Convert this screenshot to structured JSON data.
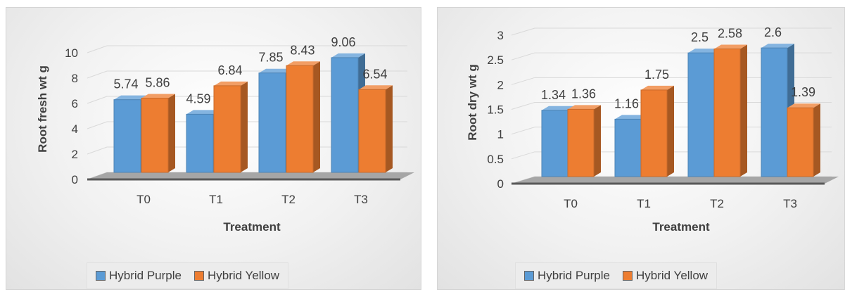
{
  "chart_data": [
    {
      "type": "bar",
      "categories": [
        "T0",
        "T1",
        "T2",
        "T3"
      ],
      "series": [
        {
          "name": "Hybrid Purple",
          "values": [
            5.74,
            4.59,
            7.85,
            9.06
          ],
          "labels": [
            "5.74",
            "4.59",
            "7.85",
            "9.06"
          ]
        },
        {
          "name": "Hybrid Yellow",
          "values": [
            5.86,
            6.84,
            8.43,
            6.54
          ],
          "labels": [
            "5.86",
            "6.84",
            "8.43",
            "6.54"
          ]
        }
      ],
      "yticks": [
        "0",
        "2",
        "4",
        "6",
        "8",
        "10"
      ],
      "xlabel": "Treatment",
      "ylabel": "Root fresh wt g",
      "ylim": [
        0,
        10
      ],
      "legend": "bottom",
      "grid": true,
      "colors": {
        "purple": "#5b9bd5",
        "yellow": "#ed7d31"
      }
    },
    {
      "type": "bar",
      "categories": [
        "T0",
        "T1",
        "T2",
        "T3"
      ],
      "series": [
        {
          "name": "Hybrid Purple",
          "values": [
            1.34,
            1.16,
            2.5,
            2.6
          ],
          "labels": [
            "1.34",
            "1.16",
            "2.5",
            "2.6"
          ]
        },
        {
          "name": "Hybrid Yellow",
          "values": [
            1.36,
            1.75,
            2.58,
            1.39
          ],
          "labels": [
            "1.36",
            "1.75",
            "2.58",
            "1.39"
          ]
        }
      ],
      "yticks": [
        "0",
        "0.5",
        "1",
        "1.5",
        "2",
        "2.5",
        "3"
      ],
      "xlabel": "Treatment",
      "ylabel": "Root dry wt g",
      "ylim": [
        0,
        3
      ],
      "legend": "bottom",
      "grid": true,
      "colors": {
        "purple": "#5b9bd5",
        "yellow": "#ed7d31"
      }
    }
  ]
}
